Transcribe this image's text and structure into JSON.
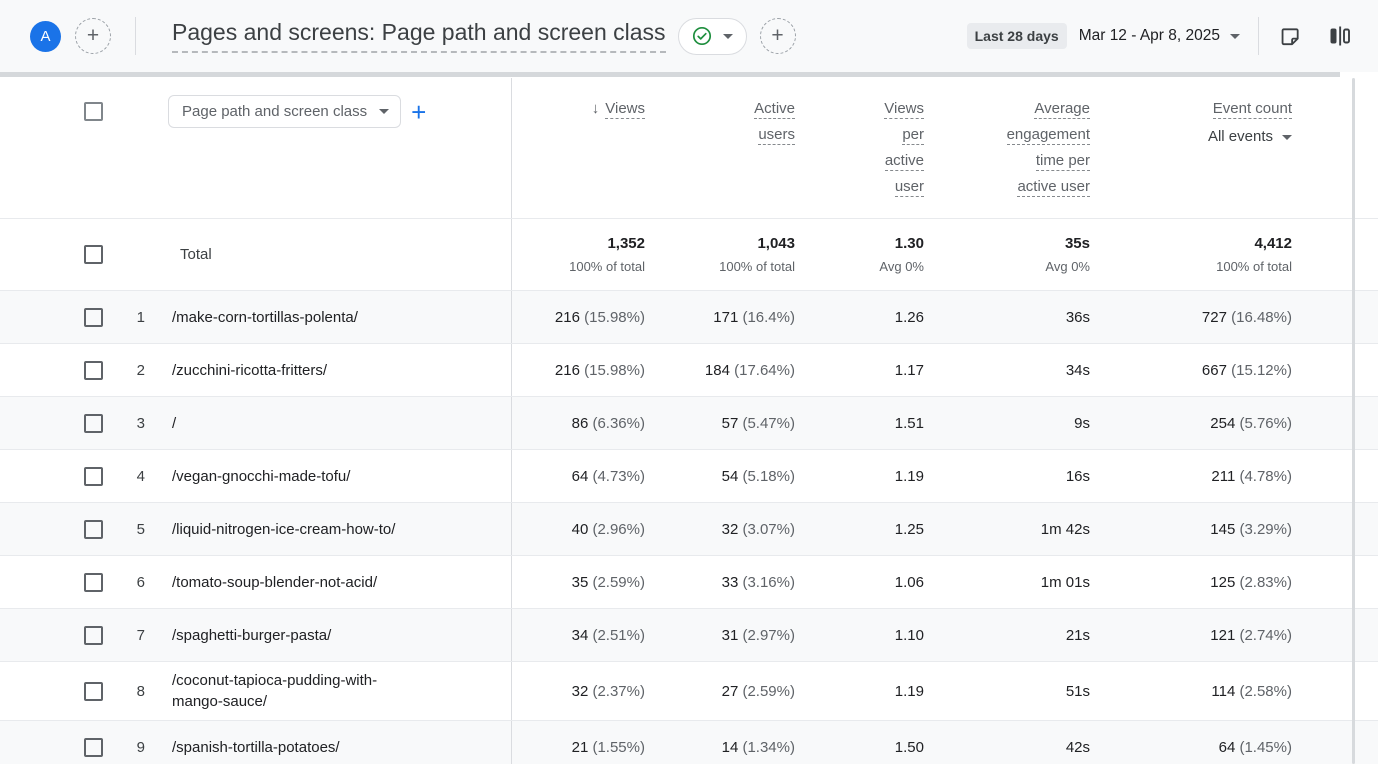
{
  "colors": {
    "accent_blue": "#1a73e8",
    "ok_green": "#1e8e3e",
    "text_primary": "#202124",
    "text_secondary": "#5f6368",
    "row_shade": "#f8f9fa"
  },
  "topbar": {
    "avatar_label": "A",
    "title": "Pages and screens: Page path and screen class",
    "date_preset": "Last 28 days",
    "date_range": "Mar 12 - Apr 8, 2025"
  },
  "table": {
    "dimension_selector": "Page path and screen class",
    "columns": [
      {
        "label_lines": [
          "Views"
        ],
        "sort": "desc"
      },
      {
        "label_lines": [
          "Active",
          "users"
        ]
      },
      {
        "label_lines": [
          "Views",
          "per",
          "active",
          "user"
        ]
      },
      {
        "label_lines": [
          "Average",
          "engagement",
          "time per",
          "active user"
        ]
      },
      {
        "label_lines": [
          "Event count"
        ],
        "filter": "All events"
      }
    ],
    "total": {
      "label": "Total",
      "values": [
        {
          "main": "1,352",
          "sub": "100% of total"
        },
        {
          "main": "1,043",
          "sub": "100% of total"
        },
        {
          "main": "1.30",
          "sub": "Avg 0%"
        },
        {
          "main": "35s",
          "sub": "Avg 0%"
        },
        {
          "main": "4,412",
          "sub": "100% of total"
        }
      ]
    },
    "rows": [
      {
        "index": 1,
        "path": "/make-corn-tortillas-polenta/",
        "values": [
          {
            "main": "216",
            "pct": "(15.98%)"
          },
          {
            "main": "171",
            "pct": "(16.4%)"
          },
          {
            "main": "1.26",
            "pct": ""
          },
          {
            "main": "36s",
            "pct": ""
          },
          {
            "main": "727",
            "pct": "(16.48%)"
          }
        ]
      },
      {
        "index": 2,
        "path": "/zucchini-ricotta-fritters/",
        "values": [
          {
            "main": "216",
            "pct": "(15.98%)"
          },
          {
            "main": "184",
            "pct": "(17.64%)"
          },
          {
            "main": "1.17",
            "pct": ""
          },
          {
            "main": "34s",
            "pct": ""
          },
          {
            "main": "667",
            "pct": "(15.12%)"
          }
        ]
      },
      {
        "index": 3,
        "path": "/",
        "values": [
          {
            "main": "86",
            "pct": "(6.36%)"
          },
          {
            "main": "57",
            "pct": "(5.47%)"
          },
          {
            "main": "1.51",
            "pct": ""
          },
          {
            "main": "9s",
            "pct": ""
          },
          {
            "main": "254",
            "pct": "(5.76%)"
          }
        ]
      },
      {
        "index": 4,
        "path": "/vegan-gnocchi-made-tofu/",
        "values": [
          {
            "main": "64",
            "pct": "(4.73%)"
          },
          {
            "main": "54",
            "pct": "(5.18%)"
          },
          {
            "main": "1.19",
            "pct": ""
          },
          {
            "main": "16s",
            "pct": ""
          },
          {
            "main": "211",
            "pct": "(4.78%)"
          }
        ]
      },
      {
        "index": 5,
        "path": "/liquid-nitrogen-ice-cream-how-to/",
        "values": [
          {
            "main": "40",
            "pct": "(2.96%)"
          },
          {
            "main": "32",
            "pct": "(3.07%)"
          },
          {
            "main": "1.25",
            "pct": ""
          },
          {
            "main": "1m 42s",
            "pct": ""
          },
          {
            "main": "145",
            "pct": "(3.29%)"
          }
        ]
      },
      {
        "index": 6,
        "path": "/tomato-soup-blender-not-acid/",
        "values": [
          {
            "main": "35",
            "pct": "(2.59%)"
          },
          {
            "main": "33",
            "pct": "(3.16%)"
          },
          {
            "main": "1.06",
            "pct": ""
          },
          {
            "main": "1m 01s",
            "pct": ""
          },
          {
            "main": "125",
            "pct": "(2.83%)"
          }
        ]
      },
      {
        "index": 7,
        "path": "/spaghetti-burger-pasta/",
        "values": [
          {
            "main": "34",
            "pct": "(2.51%)"
          },
          {
            "main": "31",
            "pct": "(2.97%)"
          },
          {
            "main": "1.10",
            "pct": ""
          },
          {
            "main": "21s",
            "pct": ""
          },
          {
            "main": "121",
            "pct": "(2.74%)"
          }
        ]
      },
      {
        "index": 8,
        "path": "/coconut-tapioca-pudding-with-mango-sauce/",
        "values": [
          {
            "main": "32",
            "pct": "(2.37%)"
          },
          {
            "main": "27",
            "pct": "(2.59%)"
          },
          {
            "main": "1.19",
            "pct": ""
          },
          {
            "main": "51s",
            "pct": ""
          },
          {
            "main": "114",
            "pct": "(2.58%)"
          }
        ]
      },
      {
        "index": 9,
        "path": "/spanish-tortilla-potatoes/",
        "values": [
          {
            "main": "21",
            "pct": "(1.55%)"
          },
          {
            "main": "14",
            "pct": "(1.34%)"
          },
          {
            "main": "1.50",
            "pct": ""
          },
          {
            "main": "42s",
            "pct": ""
          },
          {
            "main": "64",
            "pct": "(1.45%)"
          }
        ]
      }
    ]
  }
}
